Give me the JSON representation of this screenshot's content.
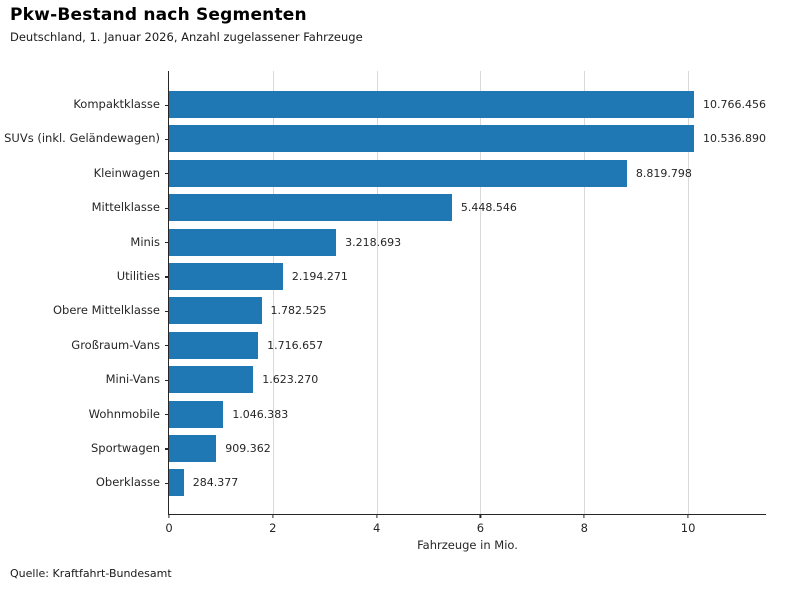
{
  "header": {
    "title": "Pkw-Bestand nach Segmenten",
    "subtitle": "Deutschland, 1. Januar 2026, Anzahl zugelassener Fahrzeuge"
  },
  "footer": {
    "source": "Quelle: Kraftfahrt-Bundesamt"
  },
  "chart_data": {
    "type": "bar",
    "orientation": "horizontal",
    "title": "Pkw-Bestand nach Segmenten",
    "subtitle": "Deutschland, 1. Januar 2026, Anzahl zugelassener Fahrzeuge",
    "categories": [
      "Kompaktklasse",
      "SUVs (inkl. Geländewagen)",
      "Kleinwagen",
      "Mittelklasse",
      "Minis",
      "Utilities",
      "Obere Mittelklasse",
      "Großraum-Vans",
      "Mini-Vans",
      "Wohnmobile",
      "Sportwagen",
      "Oberklasse"
    ],
    "values": [
      10766456,
      10536890,
      8819798,
      5448546,
      3218693,
      2194271,
      1782525,
      1716657,
      1623270,
      1046383,
      909362,
      284377
    ],
    "value_labels": [
      "10.766.456",
      "10.536.890",
      "8.819.798",
      "5.448.546",
      "3.218.693",
      "2.194.271",
      "1.782.525",
      "1.716.657",
      "1.623.270",
      "1.046.383",
      "909.362",
      "284.377"
    ],
    "xlabel": "Fahrzeuge in Mio.",
    "xlim": [
      0,
      11.5
    ],
    "xticks": [
      0,
      2,
      4,
      6,
      8,
      10
    ],
    "grid": "vertical",
    "gridline_color": "#d9d9d9",
    "bar_color": "#1f77b4",
    "source": "Quelle: Kraftfahrt-Bundesamt"
  }
}
